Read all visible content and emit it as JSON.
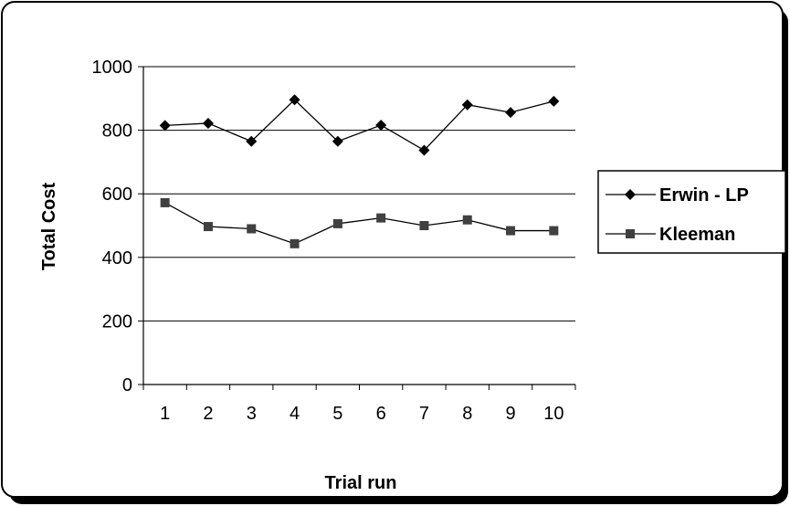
{
  "chart_data": {
    "type": "line",
    "title": "",
    "xlabel": "Trial run",
    "ylabel": "Total Cost",
    "ylim": [
      0,
      1000
    ],
    "yticks": [
      0,
      200,
      400,
      600,
      800,
      1000
    ],
    "categories": [
      "1",
      "2",
      "3",
      "4",
      "5",
      "6",
      "7",
      "8",
      "9",
      "10"
    ],
    "grid": "horizontal",
    "legend_position": "right",
    "series": [
      {
        "name": "Erwin - LP",
        "marker": "diamond",
        "color": "#000000",
        "values": [
          815,
          822,
          765,
          896,
          765,
          816,
          737,
          880,
          856,
          891
        ]
      },
      {
        "name": "Kleeman",
        "marker": "square",
        "color": "#404040",
        "values": [
          572,
          497,
          490,
          443,
          506,
          524,
          500,
          518,
          484,
          484
        ]
      }
    ]
  }
}
